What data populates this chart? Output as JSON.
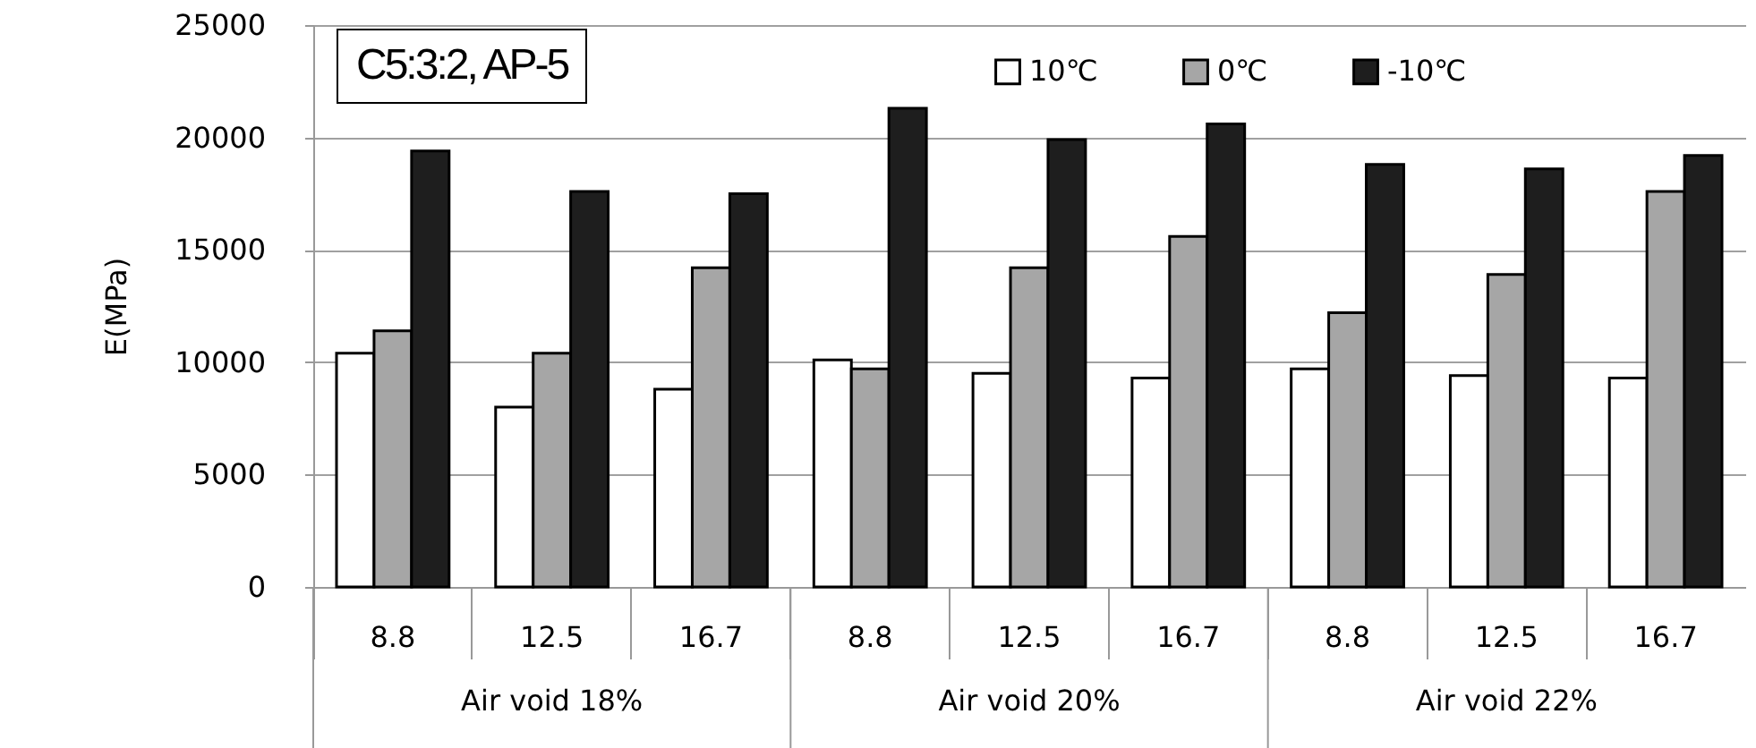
{
  "chart_data": {
    "type": "bar",
    "ylabel": "E(MPa)",
    "annotations": [
      "C5:3:2, AP-5",
      "Air void 18%",
      "Air void 20%",
      "Air void 22%"
    ],
    "categories": [
      "8.8",
      "12.5",
      "16.7",
      "8.8",
      "12.5",
      "16.7",
      "8.8",
      "12.5",
      "16.7"
    ],
    "series": [
      {
        "name": "10℃",
        "color": "#ffffff",
        "values": [
          10400,
          8000,
          8800,
          10100,
          9500,
          9300,
          9700,
          9400,
          9300
        ]
      },
      {
        "name": "0℃",
        "color": "#a6a6a6",
        "values": [
          11400,
          10400,
          14200,
          9700,
          14200,
          15600,
          12200,
          13900,
          17600
        ]
      },
      {
        "name": "-10℃",
        "color": "#1e1e1e",
        "values": [
          19400,
          17600,
          17500,
          21300,
          19900,
          20600,
          18800,
          18600,
          19200
        ]
      }
    ],
    "ylim": [
      0,
      25000
    ],
    "yticks": [
      0,
      5000,
      10000,
      15000,
      20000,
      25000
    ],
    "grid": true,
    "legend": "top right"
  }
}
